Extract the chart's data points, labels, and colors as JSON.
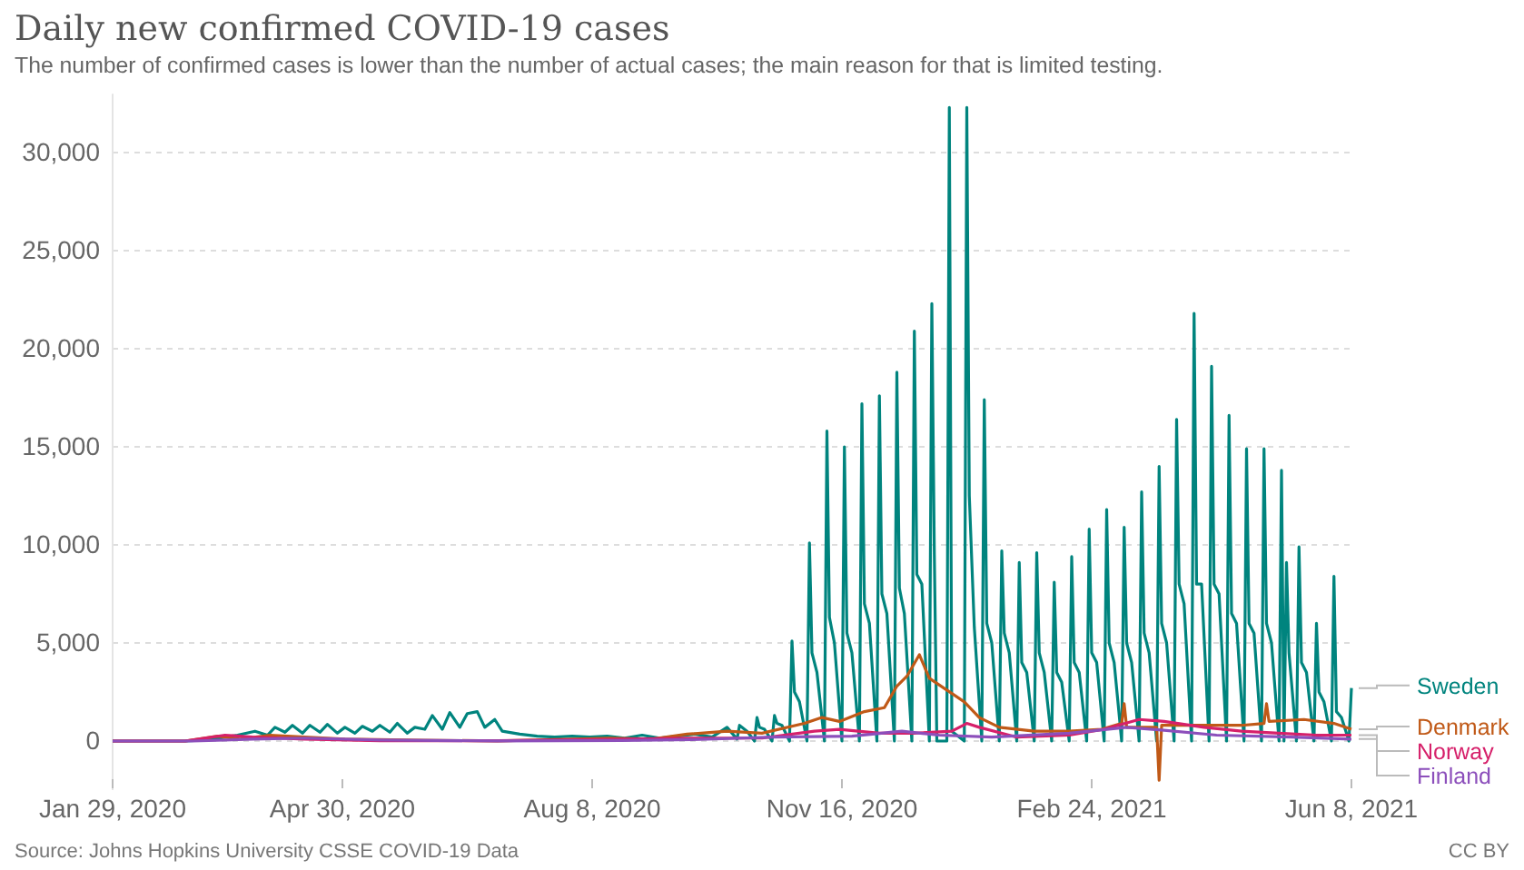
{
  "chart_data": {
    "type": "line",
    "title": "Daily new confirmed COVID-19 cases",
    "subtitle": "The number of confirmed cases is lower than the number of actual cases; the main reason for that is limited testing.",
    "annotations": [
      "Source: Johns Hopkins University CSSE COVID-19 Data",
      "CC BY"
    ],
    "xlim": [
      "2020-01-29",
      "2021-06-08"
    ],
    "xticks": [
      {
        "value": "2020-01-29",
        "label": "Jan 29, 2020"
      },
      {
        "value": "2020-04-30",
        "label": "Apr 30, 2020"
      },
      {
        "value": "2020-08-08",
        "label": "Aug 8, 2020"
      },
      {
        "value": "2020-11-16",
        "label": "Nov 16, 2020"
      },
      {
        "value": "2021-02-24",
        "label": "Feb 24, 2021"
      },
      {
        "value": "2021-06-08",
        "label": "Jun 8, 2021"
      }
    ],
    "ylim": [
      -2500,
      33000
    ],
    "yticks": [
      0,
      {
        "value": 5000,
        "label": "5,000"
      },
      {
        "value": 10000,
        "label": "10,000"
      },
      {
        "value": 15000,
        "label": "15,000"
      },
      {
        "value": 20000,
        "label": "20,000"
      },
      {
        "value": 25000,
        "label": "25,000"
      },
      {
        "value": 30000,
        "label": "30,000"
      }
    ],
    "grid": "y",
    "legend": "right",
    "line_style": "solid",
    "series": [
      {
        "name": "Sweden",
        "color": "#00847e",
        "x": [
          "2020-01-29",
          "2020-02-27",
          "2020-03-05",
          "2020-03-12",
          "2020-03-19",
          "2020-03-26",
          "2020-03-31",
          "2020-04-03",
          "2020-04-07",
          "2020-04-10",
          "2020-04-14",
          "2020-04-17",
          "2020-04-21",
          "2020-04-24",
          "2020-04-28",
          "2020-05-01",
          "2020-05-05",
          "2020-05-08",
          "2020-05-12",
          "2020-05-15",
          "2020-05-19",
          "2020-05-22",
          "2020-05-26",
          "2020-05-29",
          "2020-06-02",
          "2020-06-05",
          "2020-06-09",
          "2020-06-12",
          "2020-06-16",
          "2020-06-19",
          "2020-06-23",
          "2020-06-26",
          "2020-06-30",
          "2020-07-03",
          "2020-07-10",
          "2020-07-17",
          "2020-07-24",
          "2020-07-31",
          "2020-08-07",
          "2020-08-14",
          "2020-08-21",
          "2020-08-28",
          "2020-09-04",
          "2020-09-11",
          "2020-09-18",
          "2020-09-25",
          "2020-10-01",
          "2020-10-05",
          "2020-10-06",
          "2020-10-09",
          "2020-10-12",
          "2020-10-13",
          "2020-10-14",
          "2020-10-16",
          "2020-10-19",
          "2020-10-20",
          "2020-10-21",
          "2020-10-23",
          "2020-10-26",
          "2020-10-27",
          "2020-10-28",
          "2020-10-30",
          "2020-11-02",
          "2020-11-03",
          "2020-11-04",
          "2020-11-06",
          "2020-11-09",
          "2020-11-10",
          "2020-11-11",
          "2020-11-13",
          "2020-11-16",
          "2020-11-17",
          "2020-11-18",
          "2020-11-20",
          "2020-11-23",
          "2020-11-24",
          "2020-11-25",
          "2020-11-27",
          "2020-11-30",
          "2020-12-01",
          "2020-12-02",
          "2020-12-04",
          "2020-12-07",
          "2020-12-08",
          "2020-12-09",
          "2020-12-11",
          "2020-12-14",
          "2020-12-15",
          "2020-12-16",
          "2020-12-18",
          "2020-12-21",
          "2020-12-22",
          "2020-12-23",
          "2020-12-24",
          "2020-12-28",
          "2020-12-29",
          "2020-12-30",
          "2021-01-04",
          "2021-01-05",
          "2021-01-06",
          "2021-01-08",
          "2021-01-11",
          "2021-01-12",
          "2021-01-13",
          "2021-01-15",
          "2021-01-18",
          "2021-01-19",
          "2021-01-20",
          "2021-01-22",
          "2021-01-25",
          "2021-01-26",
          "2021-01-27",
          "2021-01-29",
          "2021-02-01",
          "2021-02-02",
          "2021-02-03",
          "2021-02-05",
          "2021-02-08",
          "2021-02-09",
          "2021-02-10",
          "2021-02-12",
          "2021-02-15",
          "2021-02-16",
          "2021-02-17",
          "2021-02-19",
          "2021-02-22",
          "2021-02-23",
          "2021-02-24",
          "2021-02-26",
          "2021-03-01",
          "2021-03-02",
          "2021-03-03",
          "2021-03-05",
          "2021-03-08",
          "2021-03-09",
          "2021-03-10",
          "2021-03-12",
          "2021-03-15",
          "2021-03-16",
          "2021-03-17",
          "2021-03-19",
          "2021-03-22",
          "2021-03-23",
          "2021-03-24",
          "2021-03-26",
          "2021-03-29",
          "2021-03-30",
          "2021-03-31",
          "2021-04-02",
          "2021-04-05",
          "2021-04-06",
          "2021-04-07",
          "2021-04-09",
          "2021-04-12",
          "2021-04-13",
          "2021-04-14",
          "2021-04-16",
          "2021-04-19",
          "2021-04-20",
          "2021-04-21",
          "2021-04-23",
          "2021-04-26",
          "2021-04-27",
          "2021-04-28",
          "2021-04-30",
          "2021-05-03",
          "2021-05-04",
          "2021-05-05",
          "2021-05-07",
          "2021-05-10",
          "2021-05-11",
          "2021-05-12",
          "2021-05-13",
          "2021-05-14",
          "2021-05-17",
          "2021-05-18",
          "2021-05-19",
          "2021-05-21",
          "2021-05-24",
          "2021-05-25",
          "2021-05-26",
          "2021-05-28",
          "2021-05-31",
          "2021-06-01",
          "2021-06-02",
          "2021-06-04",
          "2021-06-07",
          "2021-06-08"
        ],
        "values": [
          0,
          0,
          50,
          150,
          300,
          500,
          300,
          700,
          450,
          800,
          400,
          800,
          450,
          850,
          400,
          700,
          400,
          750,
          500,
          800,
          450,
          900,
          400,
          700,
          600,
          1300,
          600,
          1450,
          700,
          1400,
          1500,
          700,
          1100,
          500,
          350,
          250,
          200,
          250,
          200,
          250,
          150,
          300,
          150,
          250,
          350,
          200,
          700,
          100,
          800,
          500,
          0,
          1200,
          700,
          600,
          0,
          1300,
          900,
          800,
          0,
          5100,
          2500,
          2000,
          0,
          10100,
          4500,
          3500,
          0,
          15800,
          6300,
          5000,
          0,
          15000,
          5500,
          4500,
          0,
          17200,
          7000,
          6000,
          0,
          17600,
          7500,
          6500,
          0,
          18800,
          7800,
          6500,
          0,
          20900,
          8500,
          8000,
          0,
          22300,
          9500,
          0,
          0,
          32300,
          500,
          0,
          32300,
          12500,
          5800,
          0,
          17400,
          6000,
          5000,
          0,
          9700,
          5500,
          4500,
          0,
          9100,
          4000,
          3500,
          0,
          9600,
          4500,
          3500,
          0,
          8100,
          3500,
          3000,
          0,
          9400,
          4000,
          3500,
          0,
          10800,
          4500,
          4000,
          0,
          11800,
          5000,
          4000,
          0,
          10900,
          5000,
          4000,
          0,
          12700,
          5500,
          4500,
          0,
          14000,
          6000,
          5000,
          0,
          16400,
          8000,
          7000,
          0,
          21800,
          8000,
          8000,
          0,
          19100,
          8000,
          7500,
          0,
          16600,
          6500,
          6000,
          0,
          14900,
          6000,
          5500,
          0,
          14900,
          6000,
          5000,
          0,
          13800,
          0,
          9100,
          4500,
          0,
          9900,
          4000,
          3500,
          0,
          6000,
          2500,
          2000,
          0,
          8400,
          1500,
          1200,
          0,
          2700
        ]
      },
      {
        "name": "Denmark",
        "color": "#c05917",
        "x": [
          "2020-01-29",
          "2020-02-27",
          "2020-03-11",
          "2020-03-20",
          "2020-04-01",
          "2020-04-15",
          "2020-05-01",
          "2020-06-01",
          "2020-07-01",
          "2020-08-01",
          "2020-08-15",
          "2020-09-01",
          "2020-09-15",
          "2020-10-01",
          "2020-10-15",
          "2020-11-01",
          "2020-11-08",
          "2020-11-15",
          "2020-11-25",
          "2020-12-03",
          "2020-12-08",
          "2020-12-12",
          "2020-12-17",
          "2020-12-21",
          "2020-12-28",
          "2021-01-04",
          "2021-01-10",
          "2021-01-18",
          "2021-02-01",
          "2021-02-15",
          "2021-02-28",
          "2021-03-08",
          "2021-03-09",
          "2021-03-10",
          "2021-03-22",
          "2021-03-23",
          "2021-03-24",
          "2021-04-10",
          "2021-04-25",
          "2021-05-04",
          "2021-05-05",
          "2021-05-06",
          "2021-05-20",
          "2021-06-01",
          "2021-06-08"
        ],
        "values": [
          0,
          0,
          250,
          100,
          300,
          200,
          100,
          40,
          10,
          100,
          150,
          100,
          350,
          500,
          400,
          900,
          1200,
          1000,
          1500,
          1700,
          2800,
          3300,
          4400,
          3200,
          2600,
          2000,
          1200,
          700,
          500,
          500,
          600,
          900,
          1900,
          700,
          700,
          -2000,
          800,
          800,
          800,
          900,
          1900,
          1000,
          1100,
          900,
          600
        ]
      },
      {
        "name": "Norway",
        "color": "#d6206a",
        "x": [
          "2020-01-29",
          "2020-02-27",
          "2020-03-14",
          "2020-03-25",
          "2020-04-15",
          "2020-05-15",
          "2020-07-01",
          "2020-08-10",
          "2020-09-15",
          "2020-10-15",
          "2020-11-05",
          "2020-11-15",
          "2020-12-01",
          "2020-12-15",
          "2020-12-30",
          "2021-01-05",
          "2021-01-10",
          "2021-01-25",
          "2021-02-15",
          "2021-03-01",
          "2021-03-15",
          "2021-03-25",
          "2021-04-10",
          "2021-04-25",
          "2021-05-10",
          "2021-05-25",
          "2021-06-08"
        ],
        "values": [
          0,
          0,
          300,
          200,
          100,
          20,
          15,
          80,
          150,
          150,
          500,
          600,
          400,
          400,
          500,
          900,
          700,
          200,
          300,
          600,
          1100,
          1000,
          700,
          500,
          400,
          300,
          300
        ]
      },
      {
        "name": "Finland",
        "color": "#8c4fbb",
        "x": [
          "2020-01-29",
          "2020-03-01",
          "2020-03-25",
          "2020-04-15",
          "2020-05-15",
          "2020-07-01",
          "2020-08-20",
          "2020-09-20",
          "2020-10-20",
          "2020-11-20",
          "2020-12-10",
          "2020-12-25",
          "2021-01-15",
          "2021-02-15",
          "2021-03-10",
          "2021-03-25",
          "2021-04-15",
          "2021-05-15",
          "2021-06-08"
        ],
        "values": [
          0,
          0,
          100,
          150,
          50,
          10,
          30,
          80,
          200,
          250,
          500,
          300,
          200,
          400,
          700,
          550,
          300,
          200,
          100
        ]
      }
    ]
  }
}
